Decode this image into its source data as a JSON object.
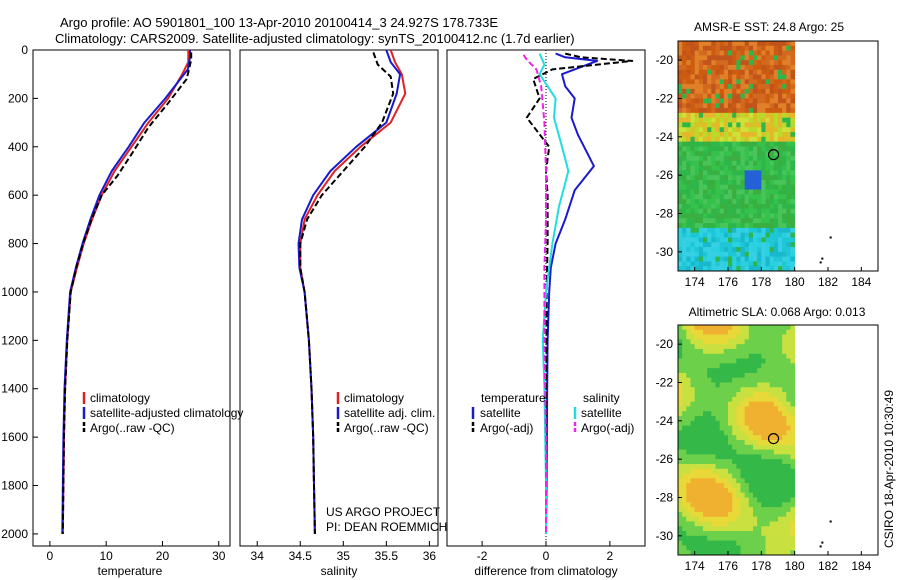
{
  "header": {
    "line1": "Argo profile: AO 5901801_100 13-Apr-2010 20100414_3 24.927S 178.733E",
    "line2": "Climatology: CARS2009. Satellite-adjusted climatology: synTS_20100412.nc (1.7d earlier)"
  },
  "side_label": "CSIRO 18-Apr-2010 10:30:49",
  "colors": {
    "red": "#dd2222",
    "blue": "#1a1acc",
    "black": "#000000",
    "cyan": "#22dddd",
    "magenta": "#ee22ee"
  },
  "chart_data": [
    {
      "type": "line",
      "xlabel": "temperature",
      "ylim": [
        2050,
        0
      ],
      "xlim": [
        -3,
        32
      ],
      "xticks": [
        0,
        10,
        20,
        30
      ],
      "yticks": [
        0,
        200,
        400,
        600,
        800,
        1000,
        1200,
        1400,
        1600,
        1800,
        2000
      ],
      "legend": [
        "climatology",
        "satellite-adjusted climatology",
        "Argo(..raw -QC)"
      ],
      "series": [
        {
          "name": "climatology",
          "color": "red",
          "dash": false,
          "x": [
            24.6,
            24.6,
            23.5,
            21.0,
            17.5,
            14.5,
            11.5,
            9.2,
            7.5,
            6.0,
            4.8,
            3.7,
            3.1,
            2.7,
            2.5,
            2.3
          ],
          "y": [
            0,
            50,
            100,
            200,
            300,
            400,
            500,
            600,
            700,
            800,
            900,
            1000,
            1200,
            1400,
            1600,
            2000
          ]
        },
        {
          "name": "satellite-adjusted climatology",
          "color": "blue",
          "dash": false,
          "x": [
            24.9,
            24.9,
            24.5,
            20.5,
            16.8,
            14.0,
            11.0,
            8.8,
            7.2,
            5.8,
            4.6,
            3.6,
            3.0,
            2.6,
            2.4,
            2.2
          ],
          "y": [
            0,
            30,
            80,
            200,
            300,
            400,
            500,
            600,
            700,
            800,
            900,
            1000,
            1200,
            1400,
            1600,
            2000
          ]
        },
        {
          "name": "Argo(..raw -QC)",
          "color": "black",
          "dash": true,
          "x": [
            25.1,
            25.1,
            24.3,
            21.0,
            17.5,
            14.8,
            12.0,
            9.2,
            7.4,
            5.9,
            4.7,
            3.7,
            3.1,
            2.7,
            2.5,
            2.3
          ],
          "y": [
            10,
            40,
            120,
            220,
            320,
            420,
            520,
            600,
            700,
            800,
            900,
            1000,
            1200,
            1400,
            1600,
            2000
          ]
        }
      ]
    },
    {
      "type": "line",
      "xlabel": "salinity",
      "ylim": [
        2050,
        0
      ],
      "xlim": [
        33.8,
        36.1
      ],
      "xticks": [
        34,
        34.5,
        35,
        35.5,
        36
      ],
      "legend": [
        "climatology",
        "satellite adj. clim.",
        "Argo(..raw -QC)"
      ],
      "annotation": [
        "US ARGO PROJECT",
        "PI: DEAN ROEMMICH"
      ],
      "series": [
        {
          "name": "climatology",
          "color": "red",
          "dash": false,
          "x": [
            35.55,
            35.6,
            35.68,
            35.72,
            35.55,
            35.2,
            34.9,
            34.7,
            34.55,
            34.5,
            34.5,
            34.55,
            34.6,
            34.63,
            34.65,
            34.66,
            34.67
          ],
          "y": [
            0,
            50,
            100,
            180,
            300,
            400,
            500,
            600,
            700,
            800,
            900,
            1000,
            1200,
            1400,
            1600,
            1800,
            2000
          ]
        },
        {
          "name": "satellite adj. clim.",
          "color": "blue",
          "dash": false,
          "x": [
            35.5,
            35.55,
            35.66,
            35.62,
            35.5,
            35.15,
            34.85,
            34.65,
            34.52,
            34.48,
            34.49,
            34.55,
            34.6,
            34.63,
            34.65,
            34.66,
            34.67
          ],
          "y": [
            0,
            50,
            100,
            180,
            300,
            400,
            500,
            600,
            700,
            800,
            900,
            1000,
            1200,
            1400,
            1600,
            1800,
            2000
          ]
        },
        {
          "name": "Argo(..raw -QC)",
          "color": "black",
          "dash": true,
          "x": [
            35.35,
            35.4,
            35.55,
            35.58,
            35.45,
            35.25,
            35.0,
            34.75,
            34.58,
            34.5,
            34.5,
            34.55,
            34.6,
            34.63,
            34.65,
            34.66,
            34.67
          ],
          "y": [
            10,
            60,
            110,
            180,
            300,
            400,
            500,
            600,
            700,
            800,
            900,
            1000,
            1200,
            1400,
            1600,
            1800,
            2000
          ]
        }
      ]
    },
    {
      "type": "line",
      "xlabel": "difference from climatology",
      "ylim": [
        2050,
        0
      ],
      "xlim": [
        -3.1,
        3.1
      ],
      "xticks": [
        -2,
        0,
        2
      ],
      "legend_headers": [
        "temperature",
        "salinity"
      ],
      "legend": [
        "satellite",
        "Argo(-adj)",
        "satellite",
        "Argo(-adj)"
      ],
      "series": [
        {
          "name": "satellite",
          "color": "blue",
          "dash": false,
          "x": [
            0.3,
            0.6,
            1.6,
            0.5,
            0.6,
            0.9,
            0.8,
            1.0,
            1.5,
            0.9,
            0.6,
            0.3,
            0.15,
            0.1,
            0.05,
            0.03,
            0.02,
            0.0
          ],
          "y": [
            15,
            30,
            45,
            100,
            150,
            200,
            280,
            350,
            480,
            580,
            700,
            800,
            900,
            1000,
            1200,
            1500,
            1800,
            2000
          ]
        },
        {
          "name": "Argo(-adj)",
          "color": "black",
          "dash": true,
          "x": [
            0.6,
            1.1,
            2.7,
            0.2,
            -0.4,
            -0.2,
            -0.6,
            0.1,
            0.0,
            0.05,
            0.05,
            0.02,
            0.02,
            0.0,
            0.0,
            0.0
          ],
          "y": [
            15,
            30,
            45,
            80,
            120,
            200,
            280,
            400,
            500,
            600,
            800,
            1000,
            1200,
            1400,
            1800,
            2000
          ]
        },
        {
          "name": "satellite",
          "color": "cyan",
          "dash": false,
          "x": [
            -0.2,
            -0.05,
            -0.2,
            0.3,
            0.25,
            0.5,
            0.7,
            0.4,
            0.2,
            0.1,
            0.0,
            -0.05,
            -0.1,
            -0.05,
            0.0,
            0.0
          ],
          "y": [
            15,
            60,
            100,
            200,
            280,
            400,
            500,
            650,
            800,
            900,
            1000,
            1100,
            1200,
            1400,
            1800,
            2000
          ]
        },
        {
          "name": "Argo(-adj)",
          "color": "magenta",
          "dash": true,
          "x": [
            -0.7,
            -0.6,
            -0.3,
            -0.15,
            -0.05,
            0.0,
            0.0,
            -0.05,
            -0.05,
            0.0,
            0.0
          ],
          "y": [
            20,
            40,
            80,
            150,
            300,
            500,
            700,
            900,
            1200,
            1600,
            2000
          ]
        }
      ]
    },
    {
      "type": "heatmap",
      "title": "AMSR-E SST: 24.8 Argo: 25",
      "xlim": [
        173,
        185
      ],
      "ylim": [
        -31,
        -19
      ],
      "xticks": [
        174,
        176,
        178,
        180,
        182,
        184
      ],
      "yticks": [
        -20,
        -22,
        -24,
        -26,
        -28,
        -30
      ],
      "data_extent_lon": [
        173,
        180
      ],
      "marker": {
        "lon": 178.733,
        "lat": -24.927
      }
    },
    {
      "type": "heatmap",
      "title": "Altimetric SLA: 0.068 Argo: 0.013",
      "xlim": [
        173,
        185
      ],
      "ylim": [
        -31,
        -19
      ],
      "xticks": [
        174,
        176,
        178,
        180,
        182,
        184
      ],
      "yticks": [
        -20,
        -22,
        -24,
        -26,
        -28,
        -30
      ],
      "data_extent_lon": [
        173,
        180
      ],
      "marker": {
        "lon": 178.733,
        "lat": -24.927
      }
    }
  ]
}
